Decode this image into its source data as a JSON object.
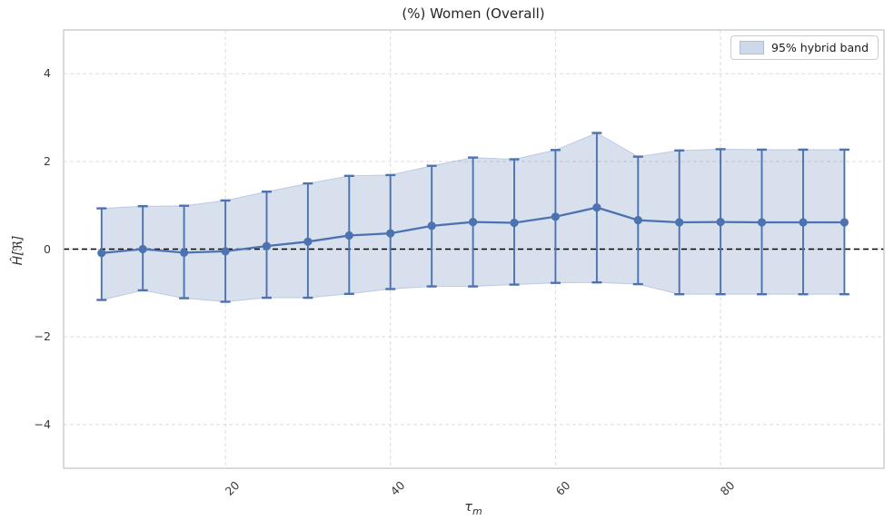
{
  "colors": {
    "series_blue": "#4c72b0",
    "band_fill": "#4c72b0",
    "band_opacity": 0.22,
    "zero_line": "#000000",
    "grid": "#dcdcdc",
    "spine": "#c6c6c6"
  },
  "legend_entry": "95% hybrid band",
  "chart_data": {
    "type": "line",
    "title": "(%) Women (Overall)",
    "ylabel": "Ĥ[ℜ]",
    "xlabel_symbol": "τ",
    "xlabel_subscript": "m",
    "legend_label": "95% hybrid band",
    "legend_position": "upper right",
    "grid": true,
    "x": [
      5,
      10,
      15,
      20,
      25,
      30,
      35,
      40,
      45,
      50,
      55,
      60,
      65,
      70,
      75,
      80,
      85,
      90,
      95
    ],
    "series": [
      {
        "name": "point estimate with error bars",
        "values": [
          -0.09,
          0.0,
          -0.08,
          -0.05,
          0.07,
          0.17,
          0.31,
          0.36,
          0.53,
          0.62,
          0.6,
          0.74,
          0.95,
          0.66,
          0.61,
          0.62,
          0.61,
          0.61,
          0.61
        ]
      }
    ],
    "band": {
      "name": "95% hybrid band",
      "upper": [
        0.93,
        0.98,
        0.99,
        1.11,
        1.31,
        1.5,
        1.67,
        1.69,
        1.9,
        2.09,
        2.05,
        2.26,
        2.65,
        2.11,
        2.25,
        2.28,
        2.27,
        2.27,
        2.27
      ],
      "lower": [
        -1.16,
        -0.94,
        -1.12,
        -1.2,
        -1.11,
        -1.11,
        -1.02,
        -0.91,
        -0.85,
        -0.85,
        -0.81,
        -0.77,
        -0.76,
        -0.8,
        -1.03,
        -1.03,
        -1.03,
        -1.03,
        -1.03
      ]
    },
    "zero_reference_line": 0,
    "xlim": [
      0.4,
      99.8
    ],
    "ylim": [
      -5,
      5
    ],
    "xticks": [
      20,
      40,
      60,
      80
    ],
    "xticklabels": [
      "20",
      "40",
      "60",
      "80"
    ],
    "yticks": [
      -4,
      -2,
      0,
      2,
      4
    ],
    "yticklabels": [
      "−4",
      "−2",
      "0",
      "2",
      "4"
    ]
  }
}
